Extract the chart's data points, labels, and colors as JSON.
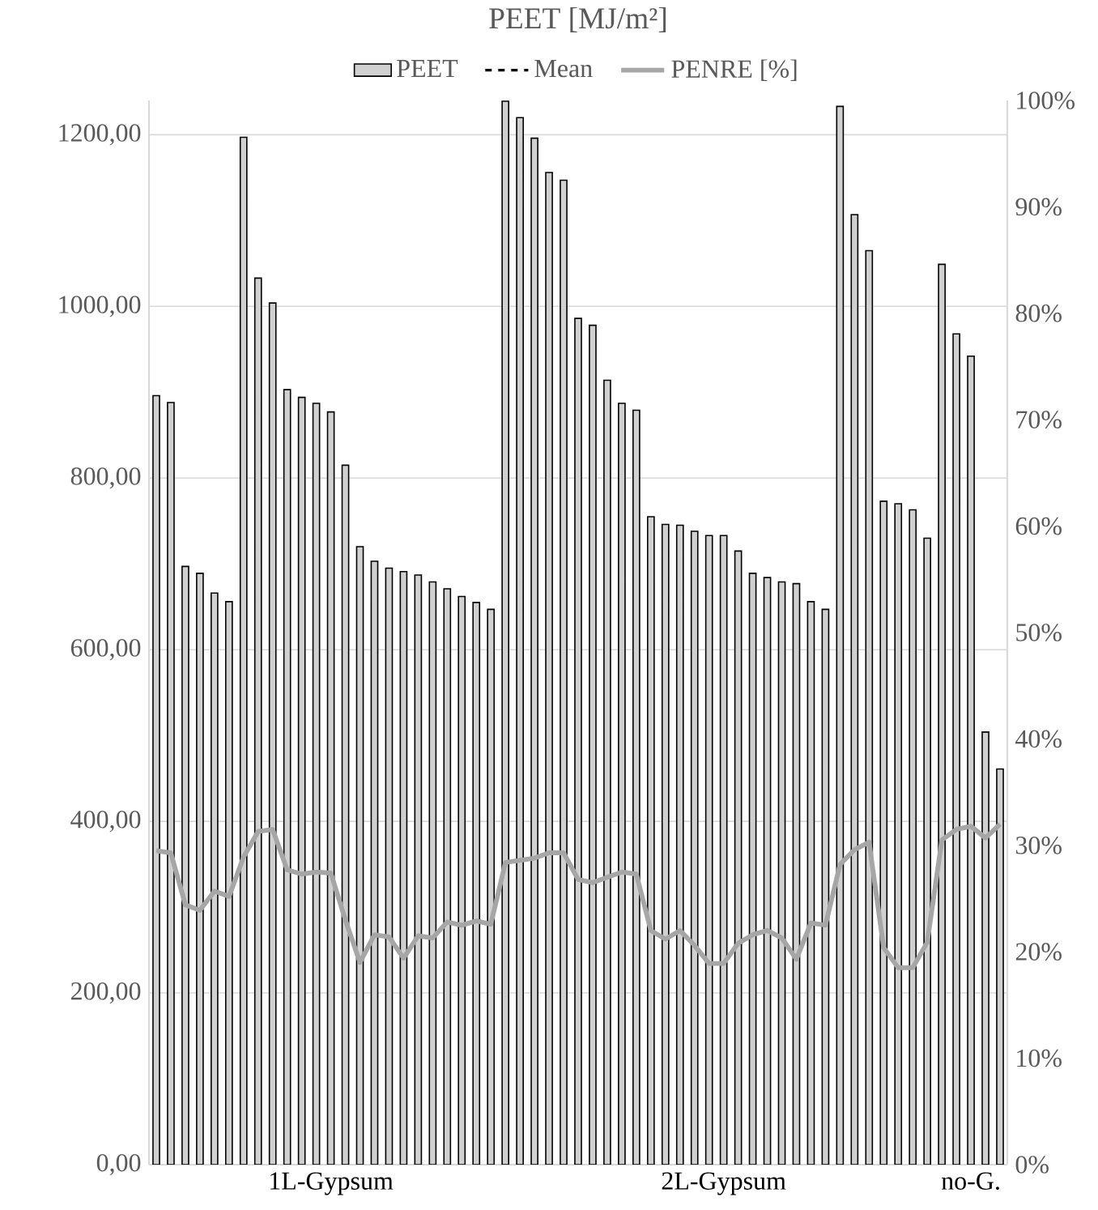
{
  "chart_data": {
    "type": "bar",
    "title": "PEET [MJ/m²]",
    "categories": [
      null,
      null,
      null,
      null,
      null,
      null,
      null,
      null,
      null,
      null,
      null,
      null,
      "1L-Gypsum",
      null,
      null,
      null,
      null,
      null,
      null,
      null,
      null,
      null,
      null,
      null,
      null,
      null,
      null,
      null,
      null,
      null,
      null,
      null,
      null,
      null,
      null,
      null,
      null,
      null,
      null,
      "2L-Gypsum",
      null,
      null,
      null,
      null,
      null,
      null,
      null,
      null,
      null,
      null,
      null,
      null,
      null,
      null,
      null,
      null,
      "no-G.",
      null,
      null
    ],
    "series": [
      {
        "name": "PEET",
        "color": "#d0d0d0",
        "values": [
          896,
          888,
          697,
          689,
          666,
          656,
          1197,
          1033,
          1004,
          903,
          894,
          887,
          877,
          815,
          720,
          703,
          695,
          691,
          687,
          679,
          671,
          662,
          655,
          647,
          1239,
          1220,
          1196,
          1156,
          1147,
          986,
          978,
          914,
          887,
          879,
          755,
          746,
          745,
          738,
          733,
          733,
          715,
          689,
          684,
          679,
          677,
          656,
          647,
          1233,
          1107,
          1065,
          773,
          770,
          763,
          730,
          1049,
          968,
          942,
          504,
          461
        ]
      },
      {
        "name": "Mean",
        "type": "line",
        "color": "#000000",
        "line_style": "dashed",
        "values": [
          null,
          null,
          null,
          null,
          null,
          null,
          null,
          null,
          null,
          null,
          null,
          null,
          null,
          null,
          null,
          null,
          null,
          null,
          null,
          null,
          null,
          null,
          null,
          null,
          null,
          null,
          null,
          null,
          null,
          null,
          null,
          null,
          null,
          null,
          null,
          null,
          null,
          null,
          null,
          null,
          null,
          null,
          null,
          null,
          null,
          null,
          null,
          null,
          null,
          null,
          null,
          null,
          null,
          null,
          null,
          null,
          null,
          null,
          null
        ]
      },
      {
        "name": "PENRE [%]",
        "type": "line",
        "axis": "y2",
        "color": "#a6a6a6",
        "line_style": "solid",
        "values": [
          29.5,
          29.3,
          24.4,
          23.9,
          25.7,
          25.2,
          28.9,
          31.3,
          31.5,
          27.7,
          27.3,
          27.5,
          27.4,
          23.0,
          19.0,
          21.6,
          21.4,
          19.4,
          21.5,
          21.3,
          22.8,
          22.5,
          22.9,
          22.6,
          28.4,
          28.6,
          28.8,
          29.3,
          29.3,
          26.8,
          26.5,
          27.0,
          27.5,
          27.3,
          22.0,
          21.2,
          22.0,
          20.6,
          18.9,
          18.9,
          20.8,
          21.6,
          22.0,
          21.3,
          19.3,
          22.7,
          22.5,
          28.2,
          29.6,
          30.3,
          20.4,
          18.5,
          18.5,
          20.9,
          30.5,
          31.5,
          31.8,
          30.7,
          32.0
        ]
      }
    ],
    "ylim": [
      0,
      1240
    ],
    "yticks": [
      {
        "value": 0,
        "label": "0,00"
      },
      {
        "value": 200,
        "label": "200,00"
      },
      {
        "value": 400,
        "label": "400,00"
      },
      {
        "value": 600,
        "label": "600,00"
      },
      {
        "value": 800,
        "label": "800,00"
      },
      {
        "value": 1000,
        "label": "1000,00"
      },
      {
        "value": 1200,
        "label": "1200,00"
      }
    ],
    "y2lim": [
      0,
      100
    ],
    "y2ticks": [
      {
        "value": 0,
        "label": "0%"
      },
      {
        "value": 10,
        "label": "10%"
      },
      {
        "value": 20,
        "label": "20%"
      },
      {
        "value": 30,
        "label": "30%"
      },
      {
        "value": 40,
        "label": "40%"
      },
      {
        "value": 50,
        "label": "50%"
      },
      {
        "value": 60,
        "label": "60%"
      },
      {
        "value": 70,
        "label": "70%"
      },
      {
        "value": 80,
        "label": "80%"
      },
      {
        "value": 90,
        "label": "90%"
      },
      {
        "value": 100,
        "label": "100%"
      }
    ],
    "grid": "y",
    "legend": "top",
    "marker": "none"
  }
}
